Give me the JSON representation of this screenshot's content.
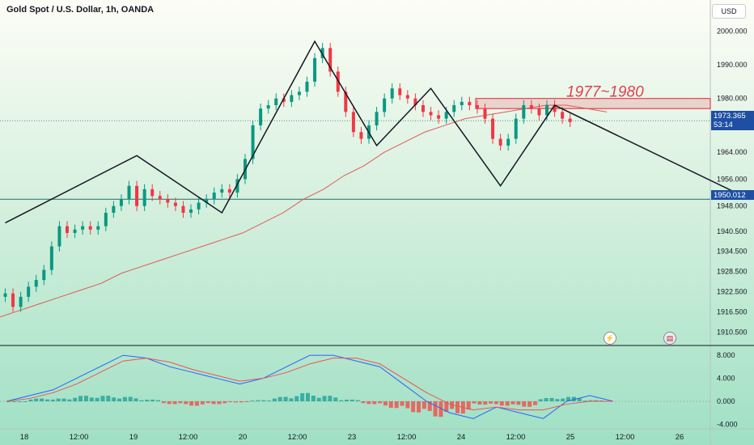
{
  "header": {
    "title": "Gold Spot / U.S. Dollar, 1h, OANDA",
    "currency": "USD"
  },
  "price_axis": {
    "labels": [
      "2000.000",
      "1990.000",
      "1980.000",
      "1964.000",
      "1956.000",
      "1948.000",
      "1940.500",
      "1934.500",
      "1928.500",
      "1922.500",
      "1916.500",
      "1910.500"
    ]
  },
  "indicator_axis": {
    "labels": [
      "8.000",
      "4.000",
      "0.000",
      "-4.000"
    ]
  },
  "time_axis": {
    "labels": [
      "18",
      "12:00",
      "19",
      "12:00",
      "20",
      "12:00",
      "23",
      "12:00",
      "24",
      "12:00",
      "25",
      "12:00",
      "26"
    ]
  },
  "tags": {
    "last_price": "1973.365",
    "countdown": "53:14",
    "hline_price": "1950.012"
  },
  "annotation": {
    "zone_text": "1977~1980",
    "zone_color": "#e04050"
  },
  "events": {
    "flash_icon": "lightning-icon",
    "flag_icon": "us-flag-icon"
  },
  "colors": {
    "up": "#089981",
    "down": "#f23645",
    "ma": "#e05a5a",
    "macd": "#2962ff",
    "signal": "#ef5350"
  },
  "chart_data": [
    {
      "type": "candlestick",
      "title": "Gold Spot / U.S. Dollar, 1h, OANDA",
      "x_labels": [
        "18",
        "12:00",
        "19",
        "12:00",
        "20",
        "12:00",
        "23",
        "12:00",
        "24",
        "12:00",
        "25",
        "12:00",
        "26"
      ],
      "ylim": [
        1907,
        2004
      ],
      "close_series": [
        1922,
        1918,
        1921,
        1924,
        1926,
        1929,
        1936,
        1942,
        1940,
        1941,
        1942,
        1941,
        1942,
        1946,
        1948,
        1950,
        1954,
        1948,
        1953,
        1951,
        1950,
        1949,
        1948,
        1946,
        1947,
        1949,
        1950,
        1952,
        1953,
        1952,
        1956,
        1962,
        1972,
        1977,
        1978,
        1980,
        1979,
        1981,
        1982,
        1985,
        1992,
        1995,
        1988,
        1982,
        1976,
        1970,
        1968,
        1972,
        1976,
        1980,
        1983,
        1981,
        1980,
        1978,
        1976,
        1975,
        1974,
        1976,
        1978,
        1979,
        1978,
        1977,
        1974,
        1968,
        1966,
        1968,
        1974,
        1978,
        1977,
        1975,
        1978,
        1976,
        1974,
        1973
      ],
      "hline": 1950.012,
      "last_price": 1973.365,
      "zone": {
        "low": 1977,
        "high": 1980,
        "label": "1977~1980"
      },
      "drawn_path": [
        [
          0,
          1943
        ],
        [
          17,
          1963
        ],
        [
          28,
          1946
        ],
        [
          40,
          1997
        ],
        [
          48,
          1966
        ],
        [
          55,
          1983
        ],
        [
          64,
          1954
        ],
        [
          71,
          1978
        ],
        [
          80,
          1950
        ]
      ],
      "ma_series": [
        1915,
        1917,
        1919,
        1921,
        1923,
        1925,
        1928,
        1930,
        1932,
        1934,
        1936,
        1938,
        1940,
        1943,
        1946,
        1950,
        1953,
        1957,
        1960,
        1964,
        1967,
        1970,
        1972,
        1974,
        1975,
        1976,
        1977,
        1978,
        1978,
        1977,
        1976
      ]
    },
    {
      "type": "line",
      "ylim": [
        -4.5,
        9
      ],
      "series": [
        {
          "values": [
            0,
            1,
            2,
            4,
            6,
            8,
            7.5,
            6,
            5,
            4,
            3,
            4,
            6,
            8,
            8,
            7,
            6,
            3,
            0,
            -2,
            -3,
            -1,
            -2,
            -3,
            0,
            1,
            0
          ]
        },
        {
          "values": [
            0,
            0.5,
            1.5,
            3,
            5,
            7,
            7.5,
            6.8,
            5.5,
            4.5,
            3.5,
            4,
            5,
            6.5,
            7.5,
            7.5,
            6.5,
            4,
            1.5,
            -0.5,
            -1.5,
            -1,
            -1.5,
            -1.5,
            -0.5,
            0,
            0
          ]
        }
      ],
      "histogram": [
        0,
        0.5,
        0.5,
        1,
        1,
        0.8,
        0.3,
        -0.5,
        -0.8,
        -0.5,
        -0.2,
        0.2,
        0.8,
        1.5,
        1,
        0.3,
        -0.5,
        -1.2,
        -2,
        -2.8,
        -2.2,
        -0.6,
        -0.8,
        -1,
        0.6,
        0.8,
        0.2
      ]
    }
  ]
}
